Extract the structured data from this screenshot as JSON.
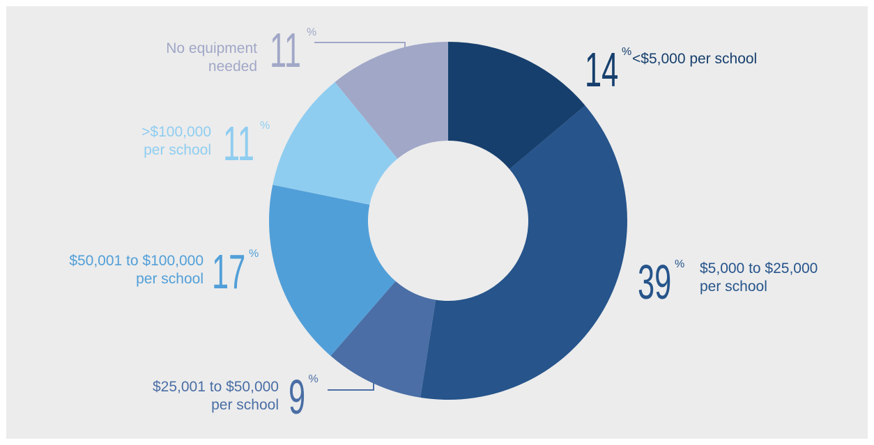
{
  "chart_data": {
    "type": "pie",
    "donut": true,
    "slices": [
      {
        "label_lines": [
          "<$5,000 per school"
        ],
        "value": 14,
        "color": "#163f6d"
      },
      {
        "label_lines": [
          "$5,000 to $25,000",
          "per school"
        ],
        "value": 39,
        "color": "#26548b"
      },
      {
        "label_lines": [
          "$25,001 to $50,000",
          "per school"
        ],
        "value": 9,
        "color": "#4a6ea5"
      },
      {
        "label_lines": [
          "$50,001 to $100,000",
          "per school"
        ],
        "value": 17,
        "color": "#519fd8"
      },
      {
        "label_lines": [
          ">$100,000",
          "per school"
        ],
        "value": 11,
        "color": "#8fcdf0"
      },
      {
        "label_lines": [
          "No equipment",
          "needed"
        ],
        "value": 11,
        "color": "#a1a7c7"
      }
    ],
    "value_suffix": "%"
  },
  "colors": {
    "background": "#ececec",
    "text_dark": "#163f6d",
    "text_light": "#8fcdf0"
  }
}
